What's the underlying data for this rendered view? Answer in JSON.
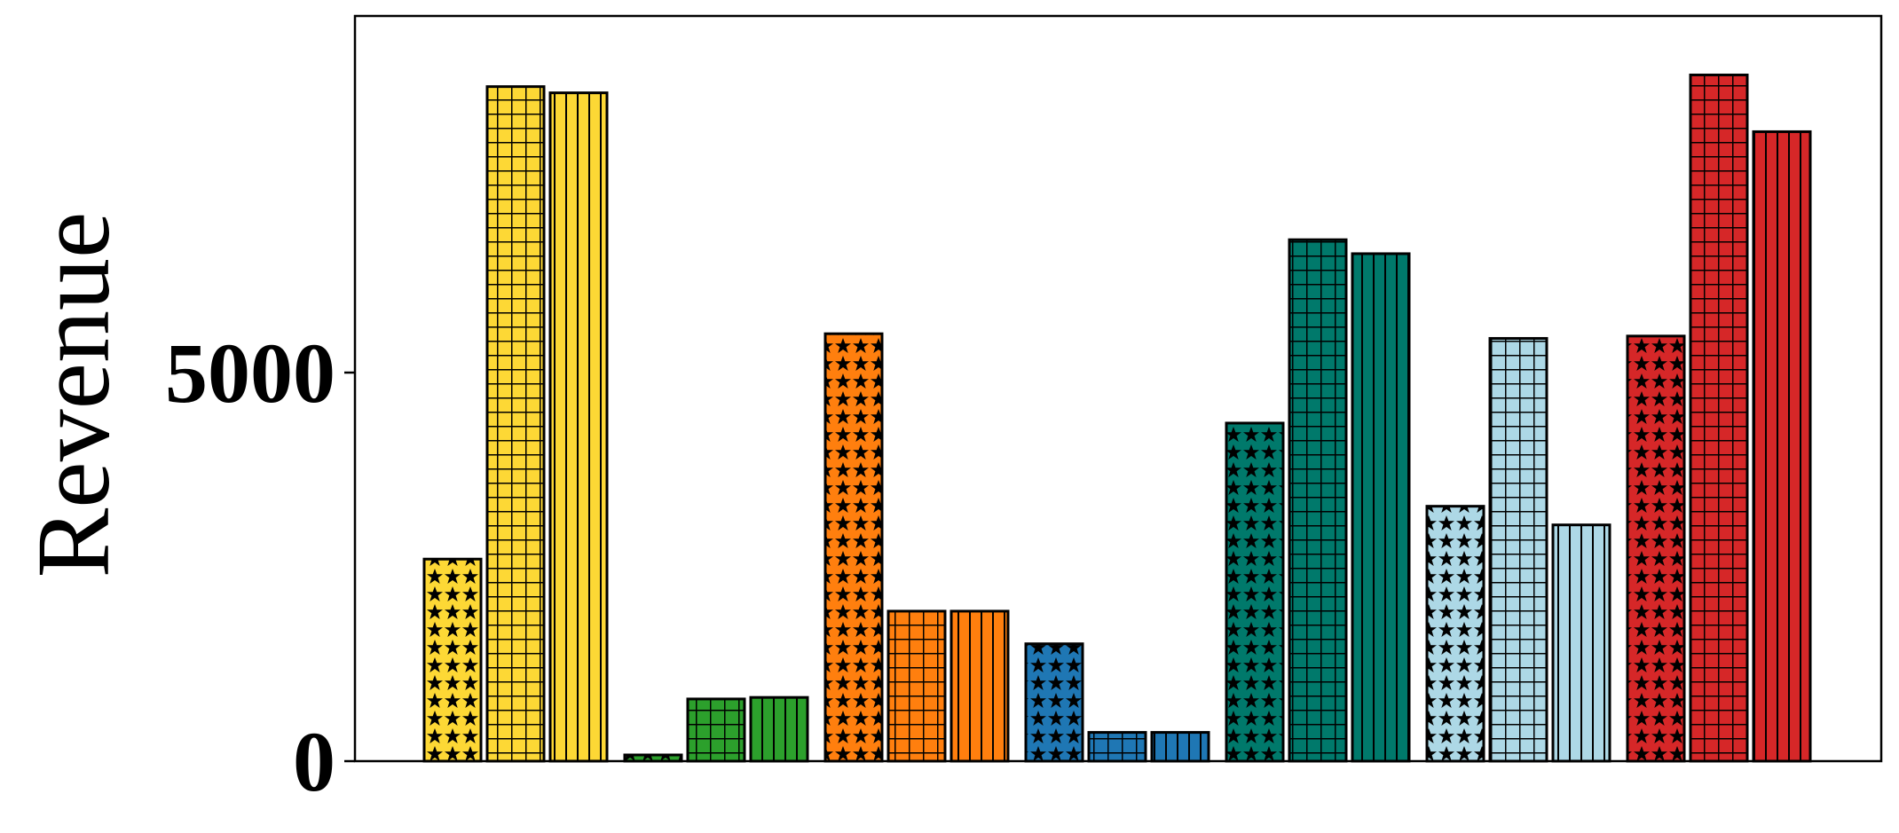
{
  "chart_data": {
    "type": "bar",
    "title": "",
    "xlabel": "",
    "ylabel": "Revenue",
    "ylim": [
      0,
      9700
    ],
    "yticks": [
      0,
      5000
    ],
    "xticks": [],
    "grid": false,
    "legend": "none",
    "patterns": [
      "star",
      "grid",
      "vertical-lines"
    ],
    "groups": [
      {
        "color": "#FDD835",
        "values": [
          2600,
          8680,
          8600
        ]
      },
      {
        "color": "#2CA02C",
        "values": [
          80,
          800,
          820
        ]
      },
      {
        "color": "#FF7F0E",
        "values": [
          5500,
          1930,
          1930
        ]
      },
      {
        "color": "#1F77B4",
        "values": [
          1510,
          370,
          370
        ]
      },
      {
        "color": "#00796B",
        "values": [
          4350,
          6710,
          6530
        ]
      },
      {
        "color": "#ADD8E6",
        "values": [
          3280,
          5440,
          3040
        ]
      },
      {
        "color": "#D62728",
        "values": [
          5470,
          8830,
          8100
        ]
      }
    ]
  }
}
